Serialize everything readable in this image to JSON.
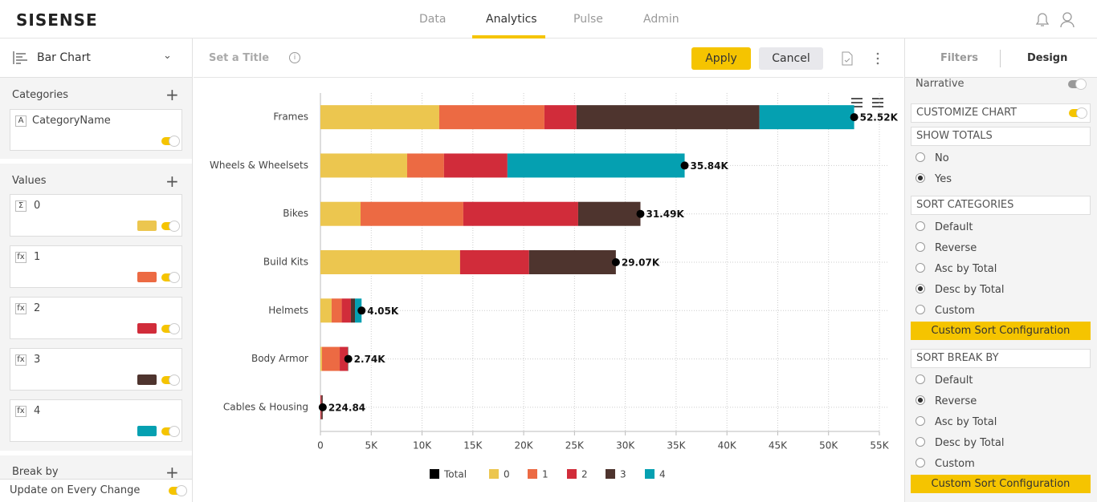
{
  "header": {
    "logo": "SISENSE",
    "nav": [
      "Data",
      "Analytics",
      "Pulse",
      "Admin"
    ]
  },
  "left_panel": {
    "chart_type": "Bar Chart",
    "categories_title": "Categories",
    "category_icon": "A",
    "category_field": "CategoryName",
    "values_title": "Values",
    "value_icons": [
      "Σ",
      "fx",
      "fx",
      "fx",
      "fx"
    ],
    "break_by_title": "Break by",
    "update_label": "Update on Every Change"
  },
  "toolbar": {
    "title_placeholder": "Set a Title",
    "apply": "Apply",
    "cancel": "Cancel"
  },
  "right_panel": {
    "tabs": [
      "Filters",
      "Design"
    ],
    "narrative": "Narrative",
    "customize": "CUSTOMIZE CHART",
    "show_totals": {
      "title": "SHOW TOTALS",
      "options": [
        "No",
        "Yes"
      ]
    },
    "sort_categories": {
      "title": "SORT CATEGORIES",
      "options": [
        "Default",
        "Reverse",
        "Asc by Total",
        "Desc by Total",
        "Custom"
      ],
      "button": "Custom Sort Configuration"
    },
    "sort_break_by": {
      "title": "SORT BREAK BY",
      "options": [
        "Default",
        "Reverse",
        "Asc by Total",
        "Desc by Total",
        "Custom"
      ],
      "button": "Custom Sort Configuration"
    }
  },
  "chart_data": {
    "type": "stacked_bar_horizontal",
    "categories": [
      "Frames",
      "Wheels & Wheelsets",
      "Bikes",
      "Build Kits",
      "Helmets",
      "Body Armor",
      "Cables & Housing"
    ],
    "series": [
      {
        "name": "Total",
        "color": "#000000",
        "mark": "point",
        "values": [
          52520,
          35840,
          31490,
          29070,
          4050,
          2740,
          224.84
        ],
        "value_labels": [
          "52.52K",
          "35.84K",
          "31.49K",
          "29.07K",
          "4.05K",
          "2.74K",
          "224.84"
        ]
      },
      {
        "name": "0",
        "color": "#ecc64f",
        "values": [
          11690,
          8530,
          3950,
          13740,
          1100,
          150,
          0
        ]
      },
      {
        "name": "1",
        "color": "#ec6a43",
        "values": [
          10350,
          3630,
          10110,
          0,
          1000,
          1750,
          0
        ]
      },
      {
        "name": "2",
        "color": "#d12c3a",
        "values": [
          3160,
          6240,
          11300,
          6790,
          900,
          800,
          100
        ]
      },
      {
        "name": "3",
        "color": "#4e342e",
        "values": [
          18000,
          0,
          6130,
          8540,
          400,
          40,
          124.84
        ]
      },
      {
        "name": "4",
        "color": "#05a0b1",
        "values": [
          9320,
          17440,
          0,
          0,
          650,
          0,
          0
        ]
      }
    ],
    "xlim": [
      0,
      55000
    ],
    "xticks": [
      0,
      {
        "value": 5000,
        "label": "5K"
      },
      {
        "value": 10000,
        "label": "10K"
      },
      {
        "value": 15000,
        "label": "15K"
      },
      {
        "value": 20000,
        "label": "20K"
      },
      {
        "value": 25000,
        "label": "25K"
      },
      {
        "value": 30000,
        "label": "30K"
      },
      {
        "value": 35000,
        "label": "35K"
      },
      {
        "value": 40000,
        "label": "40K"
      },
      {
        "value": 45000,
        "label": "45K"
      },
      {
        "value": 50000,
        "label": "50K"
      },
      {
        "value": 55000,
        "label": "55K"
      }
    ],
    "grid": true,
    "legend": "bottom"
  }
}
